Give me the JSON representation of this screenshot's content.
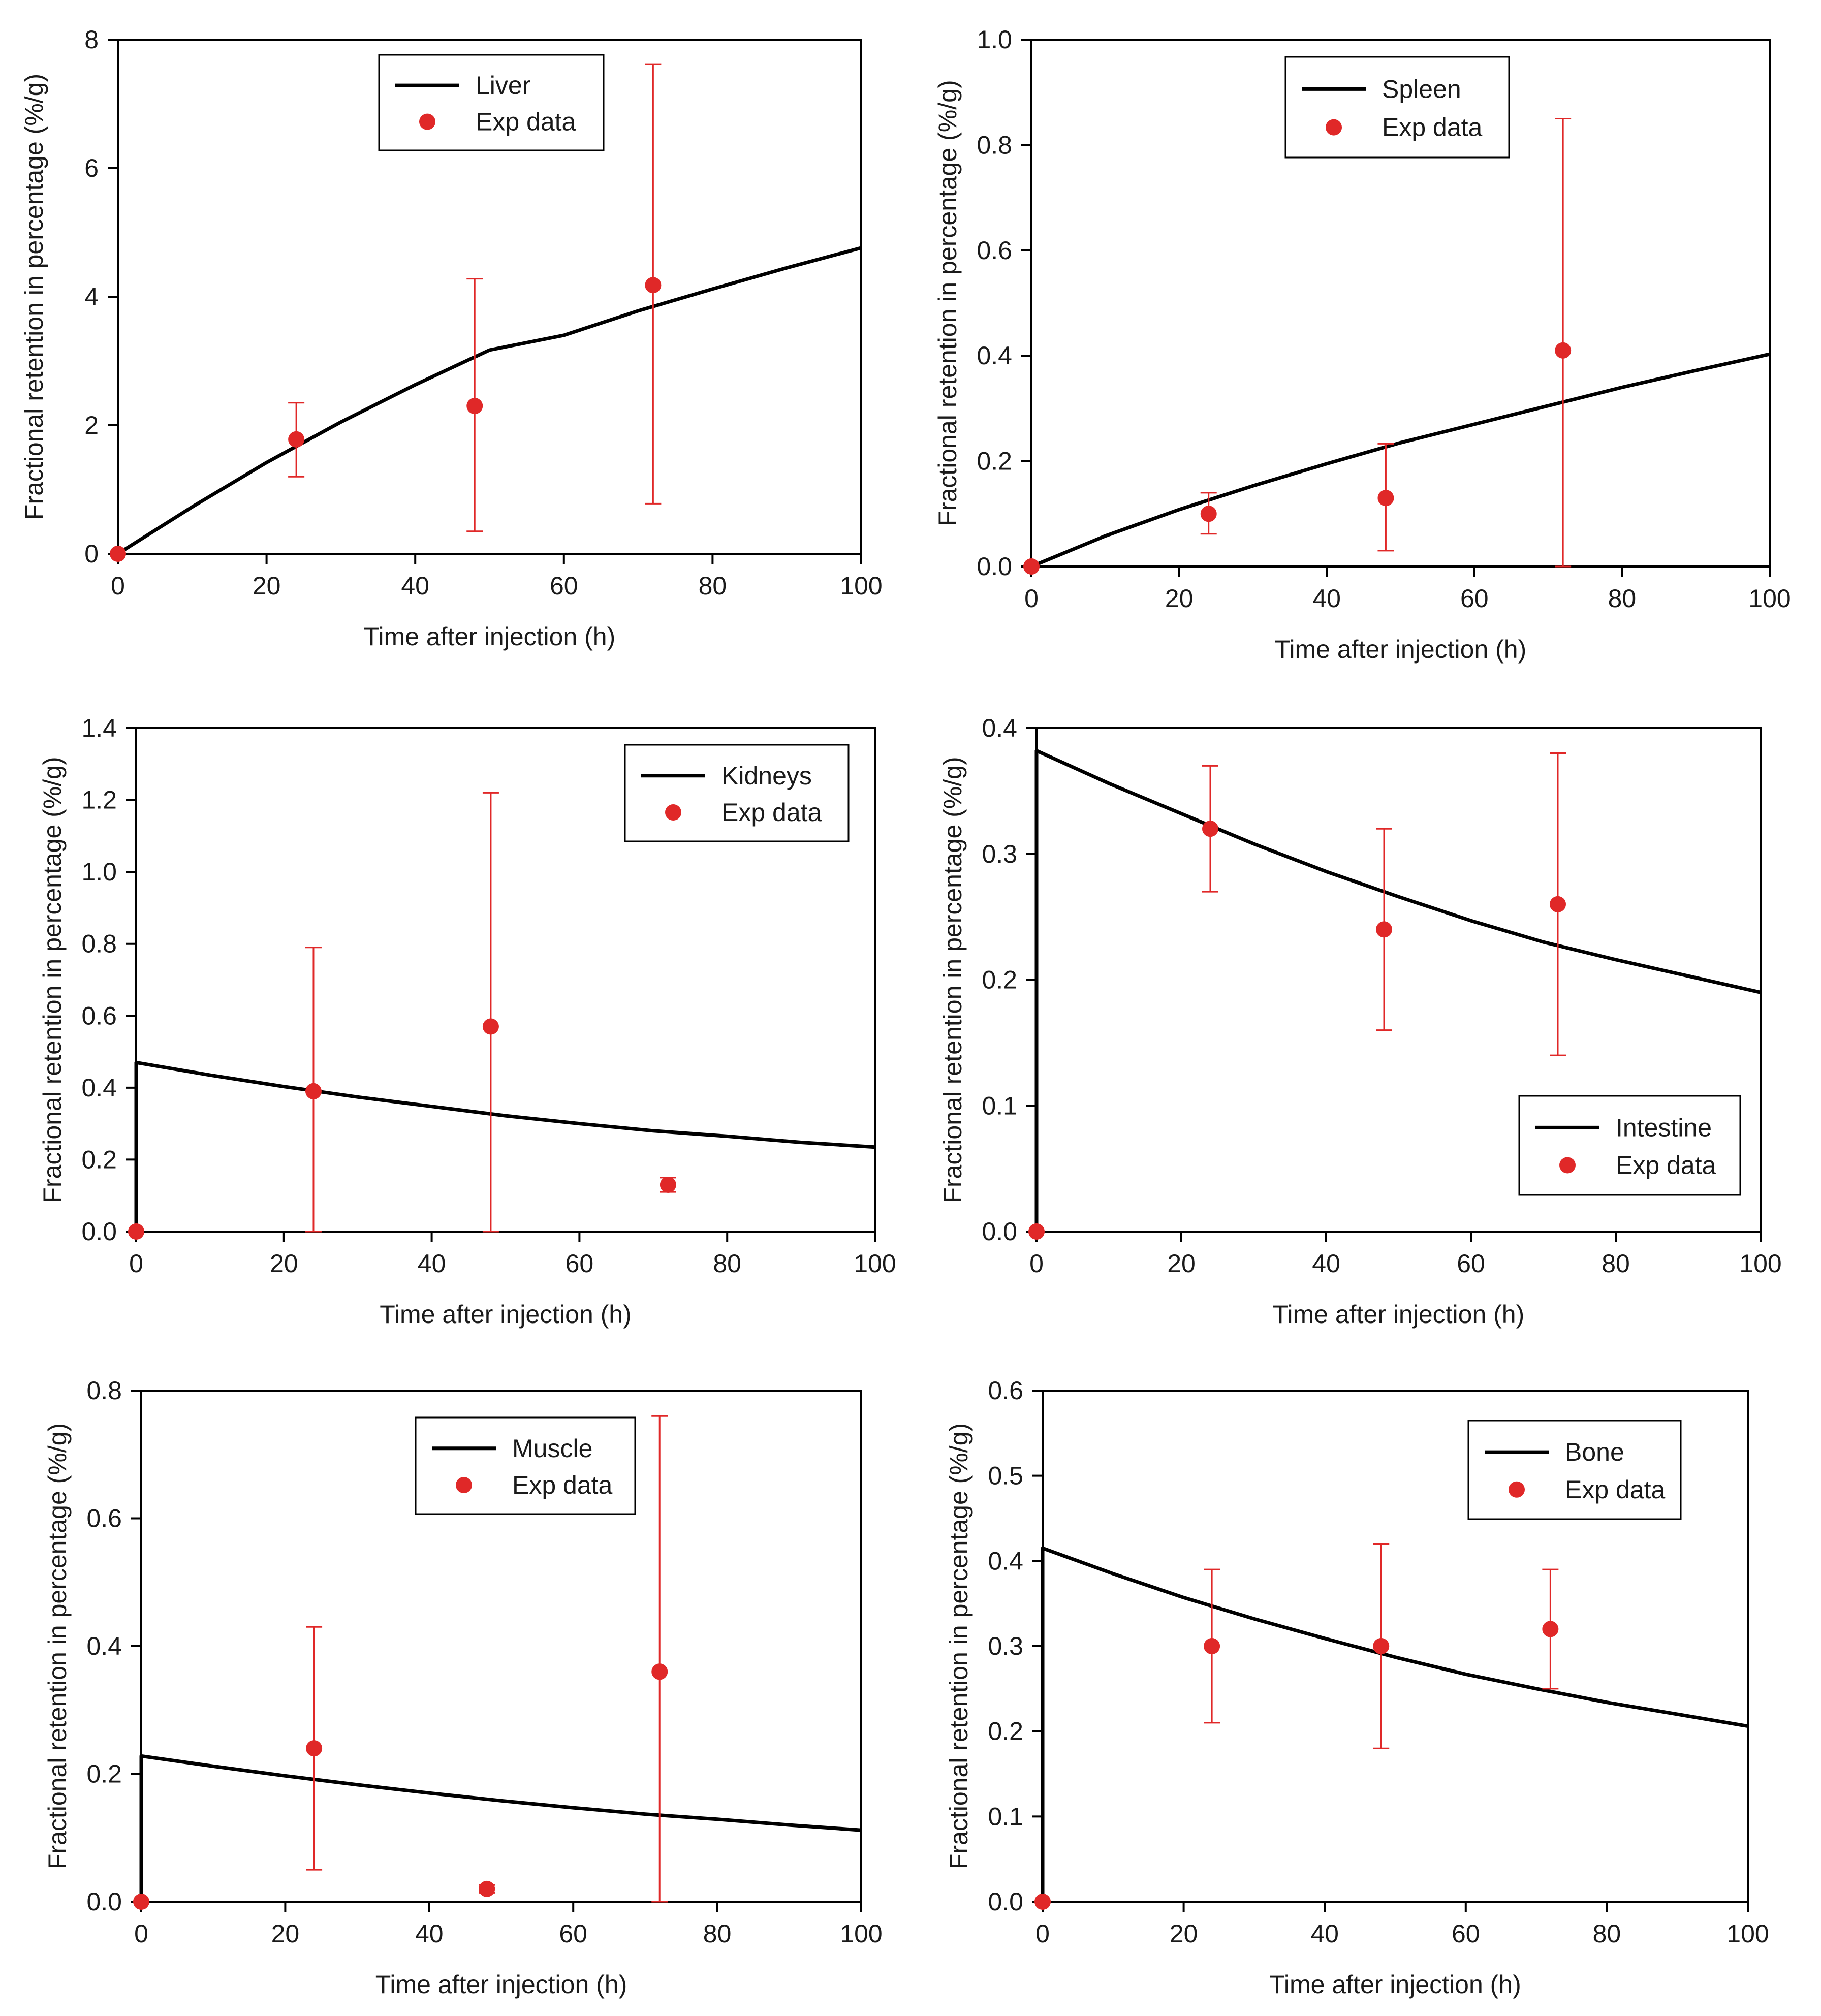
{
  "colors": {
    "model_line": "#000000",
    "exp_points": "#e02828",
    "axis": "#000000"
  },
  "chart_data": [
    {
      "type": "line",
      "panel": "Liver",
      "xlabel": "Time after injection (h)",
      "ylabel": "Fractional retention in percentage (%/g)",
      "xlim": [
        0,
        100
      ],
      "ylim": [
        0,
        8
      ],
      "xticks": [
        0,
        20,
        40,
        60,
        80,
        100
      ],
      "xtick_labels": [
        "0",
        "20",
        "40",
        "60",
        "80",
        "100"
      ],
      "yticks": [
        0,
        2,
        4,
        6,
        8
      ],
      "ytick_labels": [
        "0",
        "2",
        "4",
        "6",
        "8"
      ],
      "legend": {
        "position": "top-center",
        "line_label": "Liver",
        "points_label": "Exp data"
      },
      "model": {
        "name": "Liver",
        "x": [
          0,
          10,
          20,
          30,
          40,
          50,
          60,
          70,
          80,
          90,
          100
        ],
        "y": [
          0,
          0.73,
          1.42,
          2.05,
          2.63,
          3.17,
          3.4,
          3.78,
          4.12,
          4.45,
          4.76
        ]
      },
      "exp_data": {
        "name": "Exp data",
        "x": [
          0,
          24,
          48,
          72
        ],
        "y": [
          0,
          1.78,
          2.3,
          4.18
        ],
        "err_low": [
          0,
          1.2,
          0.35,
          0.78
        ],
        "err_high": [
          0,
          2.35,
          4.28,
          7.62
        ]
      }
    },
    {
      "type": "line",
      "panel": "Spleen",
      "xlabel": "Time after injection (h)",
      "ylabel": "Fractional retention in percentage (%/g)",
      "xlim": [
        0,
        100
      ],
      "ylim": [
        0,
        1.0
      ],
      "xticks": [
        0,
        20,
        40,
        60,
        80,
        100
      ],
      "xtick_labels": [
        "0",
        "20",
        "40",
        "60",
        "80",
        "100"
      ],
      "yticks": [
        0,
        0.2,
        0.4,
        0.6,
        0.8,
        1.0
      ],
      "ytick_labels": [
        "0.0",
        "0.2",
        "0.4",
        "0.6",
        "0.8",
        "1.0"
      ],
      "legend": {
        "position": "top-right",
        "line_label": "Spleen",
        "points_label": "Exp data"
      },
      "model": {
        "name": "Spleen",
        "x": [
          0,
          10,
          20,
          30,
          40,
          50,
          60,
          70,
          80,
          90,
          100
        ],
        "y": [
          0,
          0.058,
          0.108,
          0.153,
          0.195,
          0.235,
          0.27,
          0.305,
          0.34,
          0.372,
          0.403
        ]
      },
      "exp_data": {
        "name": "Exp data",
        "x": [
          0,
          24,
          48,
          72
        ],
        "y": [
          0,
          0.1,
          0.13,
          0.41
        ],
        "err_low": [
          0,
          0.062,
          0.03,
          0
        ],
        "err_high": [
          0,
          0.14,
          0.233,
          0.85
        ]
      }
    },
    {
      "type": "line",
      "panel": "Kidneys",
      "xlabel": "Time after injection (h)",
      "ylabel": "Fractional retention in percentage (%/g)",
      "xlim": [
        0,
        100
      ],
      "ylim": [
        0,
        1.4
      ],
      "xticks": [
        0,
        20,
        40,
        60,
        80,
        100
      ],
      "xtick_labels": [
        "0",
        "20",
        "40",
        "60",
        "80",
        "100"
      ],
      "yticks": [
        0,
        0.2,
        0.4,
        0.6,
        0.8,
        1.0,
        1.2,
        1.4
      ],
      "ytick_labels": [
        "0.0",
        "0.2",
        "0.4",
        "0.6",
        "0.8",
        "1.0",
        "1.2",
        "1.4"
      ],
      "legend": {
        "position": "top-right",
        "line_label": "Kidneys",
        "points_label": "Exp data"
      },
      "model": {
        "name": "Kidneys",
        "x": [
          0,
          0,
          10,
          20,
          30,
          40,
          50,
          60,
          70,
          80,
          90,
          100
        ],
        "y": [
          0,
          0.47,
          0.435,
          0.403,
          0.374,
          0.348,
          0.322,
          0.3,
          0.28,
          0.265,
          0.248,
          0.235
        ]
      },
      "exp_data": {
        "name": "Exp data",
        "x": [
          0,
          24,
          48,
          72
        ],
        "y": [
          0,
          0.39,
          0.57,
          0.13
        ],
        "err_low": [
          0,
          0,
          0,
          0.11
        ],
        "err_high": [
          0,
          0.79,
          1.22,
          0.15
        ]
      }
    },
    {
      "type": "line",
      "panel": "Intestine",
      "xlabel": "Time after injection (h)",
      "ylabel": "Fractional retention in percentage (%/g)",
      "xlim": [
        0,
        100
      ],
      "ylim": [
        0,
        0.4
      ],
      "xticks": [
        0,
        20,
        40,
        60,
        80,
        100
      ],
      "xtick_labels": [
        "0",
        "20",
        "40",
        "60",
        "80",
        "100"
      ],
      "yticks": [
        0,
        0.1,
        0.2,
        0.3,
        0.4
      ],
      "ytick_labels": [
        "0.0",
        "0.1",
        "0.2",
        "0.3",
        "0.4"
      ],
      "legend": {
        "position": "bottom-right",
        "line_label": "Intestine",
        "points_label": "Exp data"
      },
      "model": {
        "name": "Intestine",
        "x": [
          0,
          0,
          10,
          20,
          30,
          40,
          50,
          60,
          70,
          80,
          90,
          100
        ],
        "y": [
          0,
          0.382,
          0.356,
          0.332,
          0.308,
          0.286,
          0.266,
          0.247,
          0.23,
          0.216,
          0.203,
          0.19
        ]
      },
      "exp_data": {
        "name": "Exp data",
        "x": [
          0,
          24,
          48,
          72
        ],
        "y": [
          0,
          0.32,
          0.24,
          0.26
        ],
        "err_low": [
          0,
          0.27,
          0.16,
          0.14
        ],
        "err_high": [
          0,
          0.37,
          0.32,
          0.38
        ]
      }
    },
    {
      "type": "line",
      "panel": "Muscle",
      "xlabel": "Time after injection (h)",
      "ylabel": "Fractional retention in percentage (%/g)",
      "xlim": [
        0,
        100
      ],
      "ylim": [
        0,
        0.8
      ],
      "xticks": [
        0,
        20,
        40,
        60,
        80,
        100
      ],
      "xtick_labels": [
        "0",
        "20",
        "40",
        "60",
        "80",
        "100"
      ],
      "yticks": [
        0,
        0.2,
        0.4,
        0.6,
        0.8
      ],
      "ytick_labels": [
        "0.0",
        "0.2",
        "0.4",
        "0.6",
        "0.8"
      ],
      "legend": {
        "position": "top-center",
        "line_label": "Muscle",
        "points_label": "Exp data"
      },
      "model": {
        "name": "Muscle",
        "x": [
          0,
          0,
          10,
          20,
          30,
          40,
          50,
          60,
          70,
          80,
          90,
          100
        ],
        "y": [
          0,
          0.228,
          0.212,
          0.197,
          0.183,
          0.17,
          0.158,
          0.147,
          0.137,
          0.129,
          0.12,
          0.112
        ]
      },
      "exp_data": {
        "name": "Exp data",
        "x": [
          0,
          24,
          48,
          72
        ],
        "y": [
          0,
          0.24,
          0.02,
          0.36
        ],
        "err_low": [
          0,
          0.05,
          0.014,
          0
        ],
        "err_high": [
          0,
          0.43,
          0.026,
          0.76
        ]
      }
    },
    {
      "type": "line",
      "panel": "Bone",
      "xlabel": "Time after injection (h)",
      "ylabel": "Fractional retention in percentage (%/g)",
      "xlim": [
        0,
        100
      ],
      "ylim": [
        0,
        0.6
      ],
      "xticks": [
        0,
        20,
        40,
        60,
        80,
        100
      ],
      "xtick_labels": [
        "0",
        "20",
        "40",
        "60",
        "80",
        "100"
      ],
      "yticks": [
        0,
        0.1,
        0.2,
        0.3,
        0.4,
        0.5,
        0.6
      ],
      "ytick_labels": [
        "0.0",
        "0.1",
        "0.2",
        "0.3",
        "0.4",
        "0.5",
        "0.6"
      ],
      "legend": {
        "position": "top-right",
        "line_label": "Bone",
        "points_label": "Exp data"
      },
      "model": {
        "name": "Bone",
        "x": [
          0,
          0,
          10,
          20,
          30,
          40,
          50,
          60,
          70,
          80,
          90,
          100
        ],
        "y": [
          0,
          0.415,
          0.385,
          0.357,
          0.332,
          0.309,
          0.287,
          0.267,
          0.25,
          0.234,
          0.22,
          0.206
        ]
      },
      "exp_data": {
        "name": "Exp data",
        "x": [
          0,
          24,
          48,
          72
        ],
        "y": [
          0,
          0.3,
          0.3,
          0.32
        ],
        "err_low": [
          0,
          0.21,
          0.18,
          0.25
        ],
        "err_high": [
          0,
          0.39,
          0.42,
          0.39
        ]
      }
    }
  ]
}
